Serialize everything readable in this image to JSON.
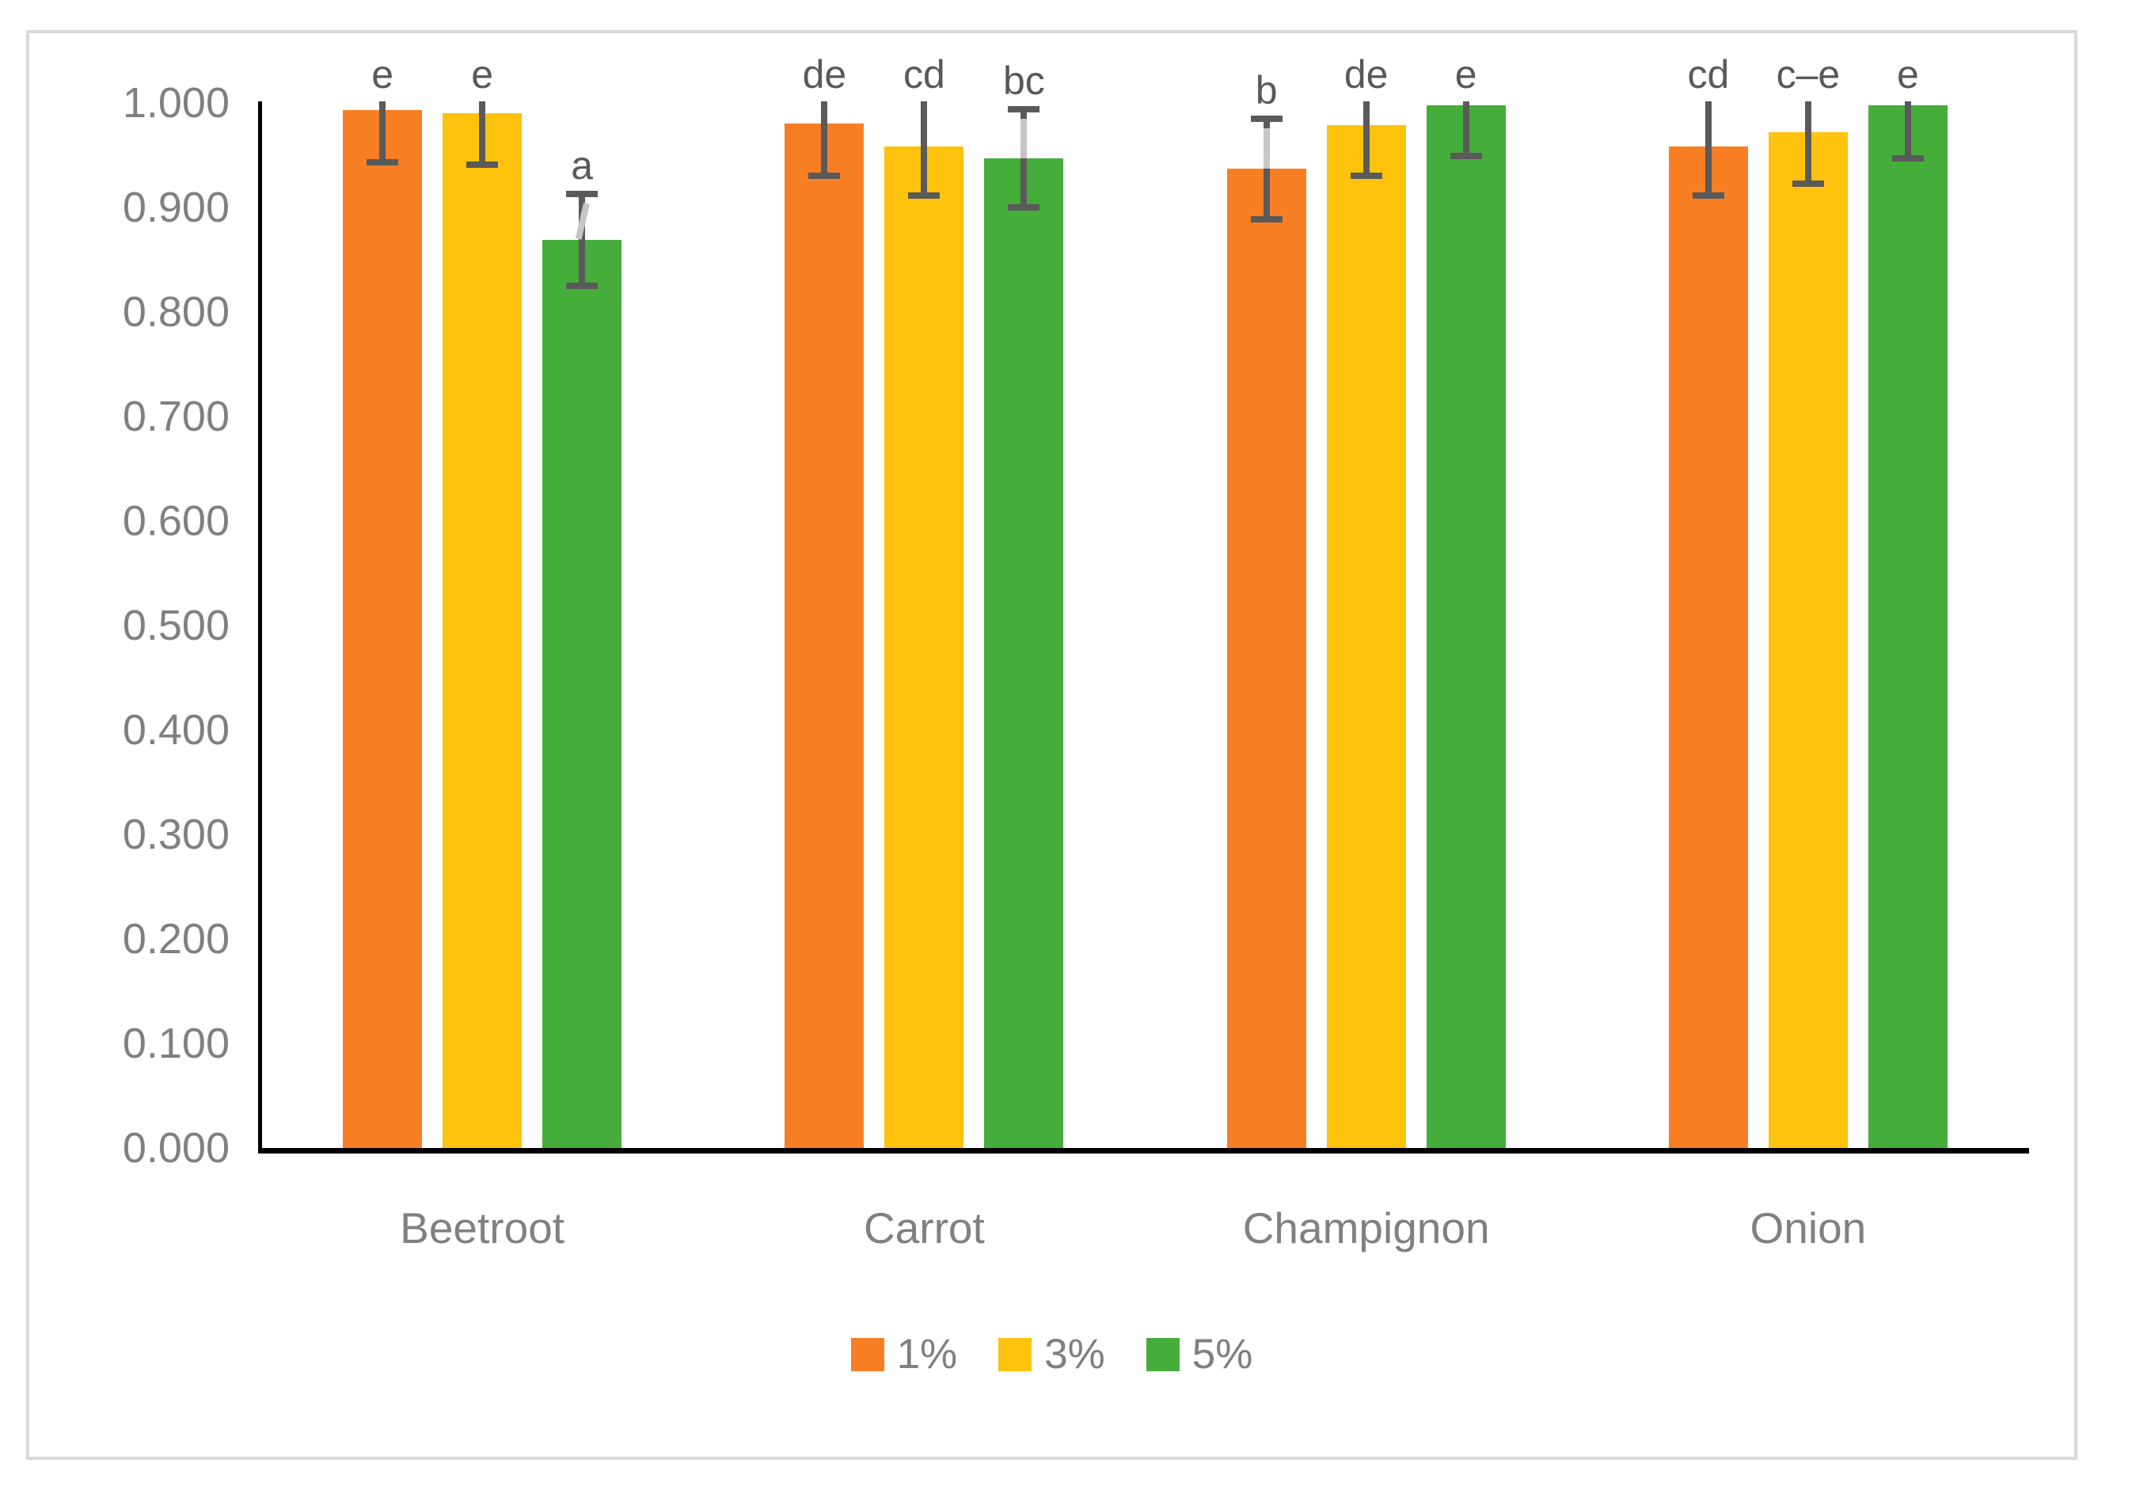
{
  "chart_data": {
    "type": "bar",
    "title": "",
    "xlabel": "",
    "ylabel": "",
    "categories": [
      "Beetroot",
      "Carrot",
      "Champignon",
      "Onion"
    ],
    "series": [
      {
        "name": "1%",
        "color": "#F87E23",
        "values": [
          0.993,
          0.98,
          0.937,
          0.958
        ],
        "errors": [
          0.05,
          0.05,
          0.048,
          0.047
        ],
        "letters": [
          "e",
          "de",
          "b",
          "cd"
        ]
      },
      {
        "name": "3%",
        "color": "#FFC20D",
        "values": [
          0.99,
          0.958,
          0.979,
          0.972
        ],
        "errors": [
          0.049,
          0.047,
          0.049,
          0.049
        ],
        "letters": [
          "e",
          "cd",
          "de",
          "c–e"
        ]
      },
      {
        "name": "5%",
        "color": "#45AD3A",
        "values": [
          0.869,
          0.947,
          0.998,
          0.998
        ],
        "errors": [
          0.044,
          0.047,
          0.049,
          0.051
        ],
        "letters": [
          "a",
          "bc",
          "e",
          "e"
        ]
      }
    ],
    "ylim": [
      0,
      1
    ],
    "y_ticks": [
      {
        "v": 1.0,
        "label": "1.000"
      },
      {
        "v": 0.9,
        "label": "0.900"
      },
      {
        "v": 0.8,
        "label": "0.800"
      },
      {
        "v": 0.7,
        "label": "0.700"
      },
      {
        "v": 0.6,
        "label": "0.600"
      },
      {
        "v": 0.5,
        "label": "0.500"
      },
      {
        "v": 0.4,
        "label": "0.400"
      },
      {
        "v": 0.3,
        "label": "0.300"
      },
      {
        "v": 0.2,
        "label": "0.200"
      },
      {
        "v": 0.1,
        "label": "0.100"
      },
      {
        "v": 0.0,
        "label": "0.000"
      }
    ],
    "grid": false,
    "legend_position": "bottom",
    "legend": [
      {
        "label": "1%",
        "color": "#F87E23"
      },
      {
        "label": "3%",
        "color": "#FFC20D"
      },
      {
        "label": "5%",
        "color": "#45AD3A"
      }
    ]
  },
  "style_colors": {
    "frame_border": "#D9D9D9",
    "axis_line": "#000000",
    "tick_text": "#808080",
    "category_text": "#808080",
    "letter_text": "#595959",
    "error_bar": "#5A5A5A",
    "leader_line": "#C6C6C6",
    "legend_text": "#7F7F7F",
    "background": "#FFFFFF"
  }
}
